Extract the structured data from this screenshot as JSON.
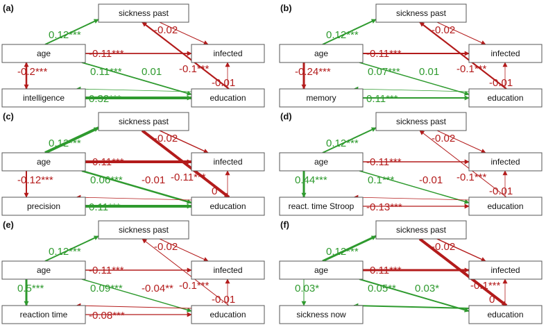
{
  "colors": {
    "positive": "#2e9a2e",
    "negative": "#b31b1b"
  },
  "panels": [
    {
      "label": "(a)",
      "nodes": {
        "sick": "sickness past",
        "age": "age",
        "inf": "infected",
        "var": "intelligence",
        "edu": "education"
      },
      "edges": [
        {
          "from": "age",
          "to": "sick",
          "label": "0.12***",
          "sign": "pos",
          "w": 2
        },
        {
          "from": "edu",
          "to": "sick",
          "label": "-0.02",
          "sign": "neg",
          "w": 2.2
        },
        {
          "from": "age",
          "to": "inf",
          "label": "-0.11***",
          "sign": "neg",
          "w": 1.8
        },
        {
          "from": "age",
          "to": "var",
          "label": "-0.2***",
          "sign": "neg",
          "w": 2.5,
          "both": true
        },
        {
          "from": "age",
          "to": "edu",
          "label": "0.11***",
          "sign": "pos",
          "w": 1.8
        },
        {
          "from": "sick",
          "to": "inf",
          "label": "-0.1***",
          "sign": "neg",
          "w": 1
        },
        {
          "from": "edu",
          "to": "var",
          "label": "0.01",
          "sign": "pos",
          "w": 0.8
        },
        {
          "from": "edu",
          "to": "inf",
          "label": "-0.01",
          "sign": "neg",
          "w": 0.8
        },
        {
          "from": "var",
          "to": "edu",
          "label": "0.32***",
          "sign": "pos",
          "w": 4
        }
      ]
    },
    {
      "label": "(b)",
      "nodes": {
        "sick": "sickness past",
        "age": "age",
        "inf": "infected",
        "var": "memory",
        "edu": "education"
      },
      "edges": [
        {
          "from": "age",
          "to": "sick",
          "label": "0.12***",
          "sign": "pos",
          "w": 2
        },
        {
          "from": "edu",
          "to": "sick",
          "label": "-0.02",
          "sign": "neg",
          "w": 2.2
        },
        {
          "from": "age",
          "to": "inf",
          "label": "-0.11***",
          "sign": "neg",
          "w": 2
        },
        {
          "from": "age",
          "to": "var",
          "label": "-0.24***",
          "sign": "neg",
          "w": 3
        },
        {
          "from": "age",
          "to": "edu",
          "label": "0.07***",
          "sign": "pos",
          "w": 1.5
        },
        {
          "from": "sick",
          "to": "inf",
          "label": "-0.1***",
          "sign": "neg",
          "w": 1
        },
        {
          "from": "edu",
          "to": "var",
          "label": "0.01",
          "sign": "pos",
          "w": 0.8
        },
        {
          "from": "edu",
          "to": "inf",
          "label": "-0.01",
          "sign": "neg",
          "w": 0.8
        },
        {
          "from": "var",
          "to": "edu",
          "label": "0.11***",
          "sign": "pos",
          "w": 2
        }
      ]
    },
    {
      "label": "(c)",
      "nodes": {
        "sick": "sickness past",
        "age": "age",
        "inf": "infected",
        "var": "precision",
        "edu": "education"
      },
      "edges": [
        {
          "from": "age",
          "to": "sick",
          "label": "0.12***",
          "sign": "pos",
          "w": 4
        },
        {
          "from": "sick",
          "to": "edu",
          "label": "-0.11***",
          "sign": "neg",
          "w": 4
        },
        {
          "from": "sick",
          "to": "inf",
          "label": "-0.02",
          "sign": "neg",
          "w": 1.5
        },
        {
          "from": "age",
          "to": "inf",
          "label": "-0.11***",
          "sign": "neg",
          "w": 4
        },
        {
          "from": "age",
          "to": "var",
          "label": "-0.12***",
          "sign": "neg",
          "w": 2
        },
        {
          "from": "age",
          "to": "edu",
          "label": "0.06***",
          "sign": "pos",
          "w": 2.5
        },
        {
          "from": "edu",
          "to": "var",
          "label": "-0.01",
          "sign": "neg",
          "w": 0.8
        },
        {
          "from": "edu",
          "to": "inf",
          "label": "0",
          "sign": "neg",
          "w": 0.8
        },
        {
          "from": "var",
          "to": "edu",
          "label": "0.11***",
          "sign": "pos",
          "w": 4
        }
      ]
    },
    {
      "label": "(d)",
      "nodes": {
        "sick": "sickness past",
        "age": "age",
        "inf": "infected",
        "var": "react. time Stroop",
        "edu": "education"
      },
      "edges": [
        {
          "from": "age",
          "to": "sick",
          "label": "0.12***",
          "sign": "pos",
          "w": 2
        },
        {
          "from": "edu",
          "to": "sick",
          "label": "-0.02",
          "sign": "neg",
          "w": 1
        },
        {
          "from": "age",
          "to": "inf",
          "label": "-0.11***",
          "sign": "neg",
          "w": 1.5
        },
        {
          "from": "age",
          "to": "var",
          "label": "0.44***",
          "sign": "pos",
          "w": 3
        },
        {
          "from": "age",
          "to": "edu",
          "label": "0.1***",
          "sign": "pos",
          "w": 1.5
        },
        {
          "from": "sick",
          "to": "inf",
          "label": "-0.1***",
          "sign": "neg",
          "w": 1
        },
        {
          "from": "edu",
          "to": "var",
          "label": "-0.01",
          "sign": "neg",
          "w": 0.8
        },
        {
          "from": "edu",
          "to": "inf",
          "label": "-0.01",
          "sign": "neg",
          "w": 0.8
        },
        {
          "from": "var",
          "to": "edu",
          "label": "-0.13***",
          "sign": "neg",
          "w": 1.2
        }
      ]
    },
    {
      "label": "(e)",
      "nodes": {
        "sick": "sickness past",
        "age": "age",
        "inf": "infected",
        "var": "reaction time",
        "edu": "education"
      },
      "edges": [
        {
          "from": "age",
          "to": "sick",
          "label": "0.12***",
          "sign": "pos",
          "w": 2
        },
        {
          "from": "edu",
          "to": "sick",
          "label": "-0.02",
          "sign": "neg",
          "w": 1
        },
        {
          "from": "age",
          "to": "inf",
          "label": "-0.11***",
          "sign": "neg",
          "w": 1.5
        },
        {
          "from": "age",
          "to": "var",
          "label": "0.5***",
          "sign": "pos",
          "w": 3
        },
        {
          "from": "age",
          "to": "edu",
          "label": "0.09***",
          "sign": "pos",
          "w": 1.5
        },
        {
          "from": "sick",
          "to": "inf",
          "label": "-0.1***",
          "sign": "neg",
          "w": 1
        },
        {
          "from": "edu",
          "to": "var",
          "label": "-0.04**",
          "sign": "neg",
          "w": 1
        },
        {
          "from": "edu",
          "to": "inf",
          "label": "-0.01",
          "sign": "neg",
          "w": 0.8
        },
        {
          "from": "var",
          "to": "edu",
          "label": "-0.08***",
          "sign": "neg",
          "w": 1.2
        }
      ]
    },
    {
      "label": "(f)",
      "nodes": {
        "sick": "sickness past",
        "age": "age",
        "inf": "infected",
        "var": "sickness now",
        "edu": "education"
      },
      "edges": [
        {
          "from": "age",
          "to": "sick",
          "label": "0.12***",
          "sign": "pos",
          "w": 3
        },
        {
          "from": "sick",
          "to": "edu",
          "label": "-0.1***",
          "sign": "neg",
          "w": 4
        },
        {
          "from": "sick",
          "to": "inf",
          "label": "-0.02",
          "sign": "neg",
          "w": 1.5
        },
        {
          "from": "age",
          "to": "inf",
          "label": "-0.11***",
          "sign": "neg",
          "w": 3
        },
        {
          "from": "age",
          "to": "var",
          "label": "0.03*",
          "sign": "pos",
          "w": 1
        },
        {
          "from": "age",
          "to": "edu",
          "label": "0.05**",
          "sign": "pos",
          "w": 2
        },
        {
          "from": "edu",
          "to": "var",
          "label": "0.03*",
          "sign": "pos",
          "w": 2
        },
        {
          "from": "edu",
          "to": "inf",
          "label": "0",
          "sign": "neg",
          "w": 0.8
        }
      ]
    }
  ]
}
